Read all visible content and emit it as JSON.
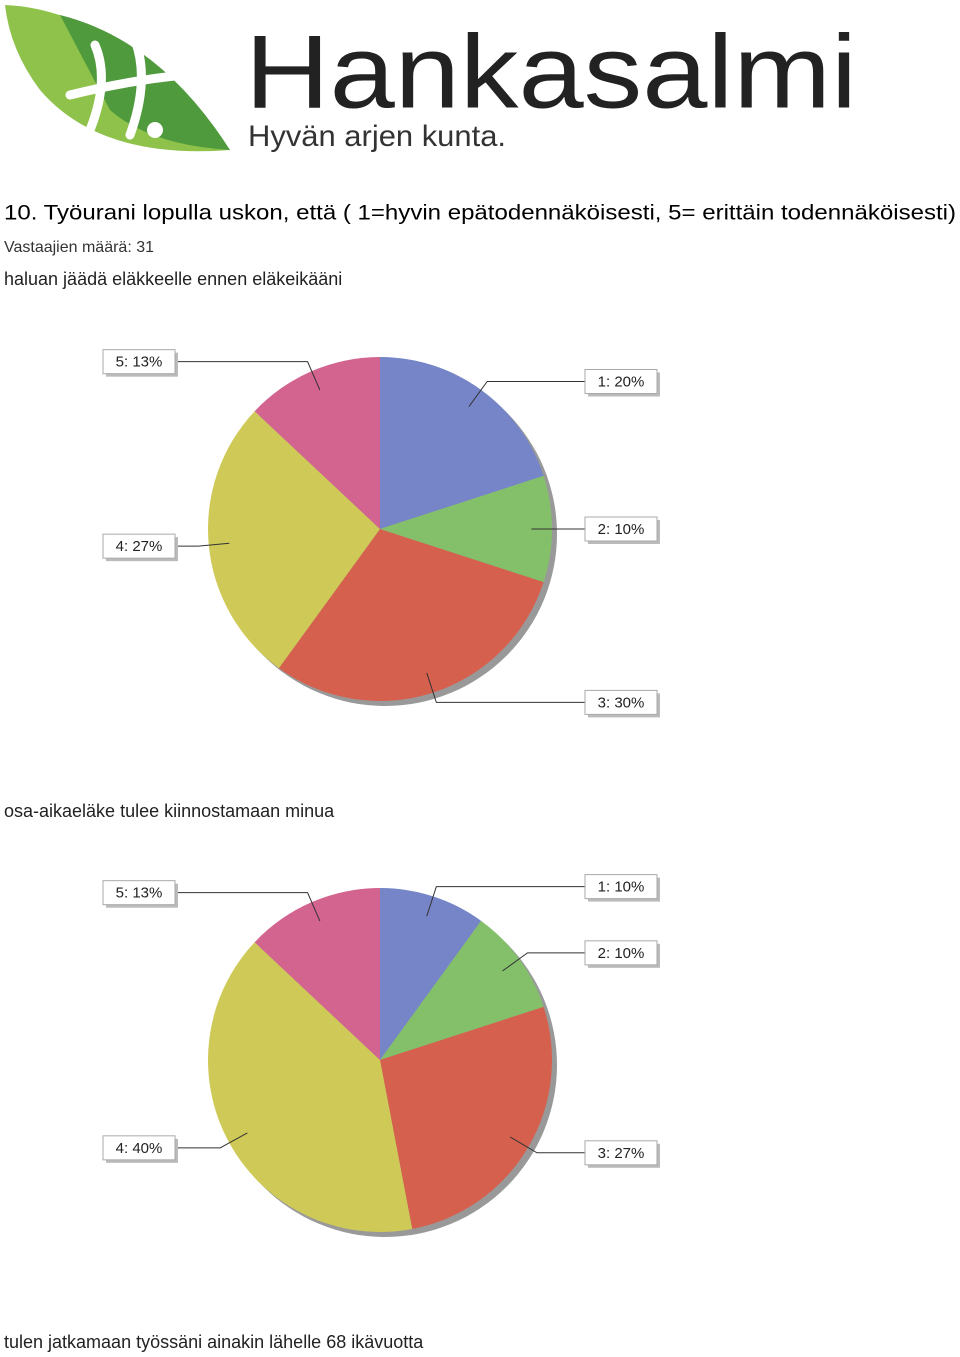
{
  "logo": {
    "name": "Hankasalmi",
    "tagline": "Hyvän arjen kunta."
  },
  "question": "10. Työurani lopulla uskon, että ( 1=hyvin epätodennäköisesti, 5= erittäin todennäköisesti)",
  "respondents": "Vastaajien määrä: 31",
  "chart_data": [
    {
      "type": "pie",
      "title": "haluan jäädä eläkkeelle ennen eläkeikääni",
      "values": [
        20,
        10,
        30,
        27,
        13
      ],
      "value_labels": [
        "1: 20%",
        "2: 10%",
        "3: 30%",
        "4: 27%",
        "5: 13%"
      ],
      "colors": [
        "#7585c8",
        "#84c06a",
        "#d6604e",
        "#cfc957",
        "#d2648f"
      ]
    },
    {
      "type": "pie",
      "title": "osa-aikaeläke tulee kiinnostamaan minua",
      "values": [
        10,
        10,
        27,
        40,
        13
      ],
      "value_labels": [
        "1: 10%",
        "2: 10%",
        "3: 27%",
        "4: 40%",
        "5: 13%"
      ],
      "colors": [
        "#7585c8",
        "#84c06a",
        "#d6604e",
        "#cfc957",
        "#d2648f"
      ]
    }
  ],
  "next_item": "tulen jatkamaan työssäni ainakin lähelle 68 ikävuotta"
}
